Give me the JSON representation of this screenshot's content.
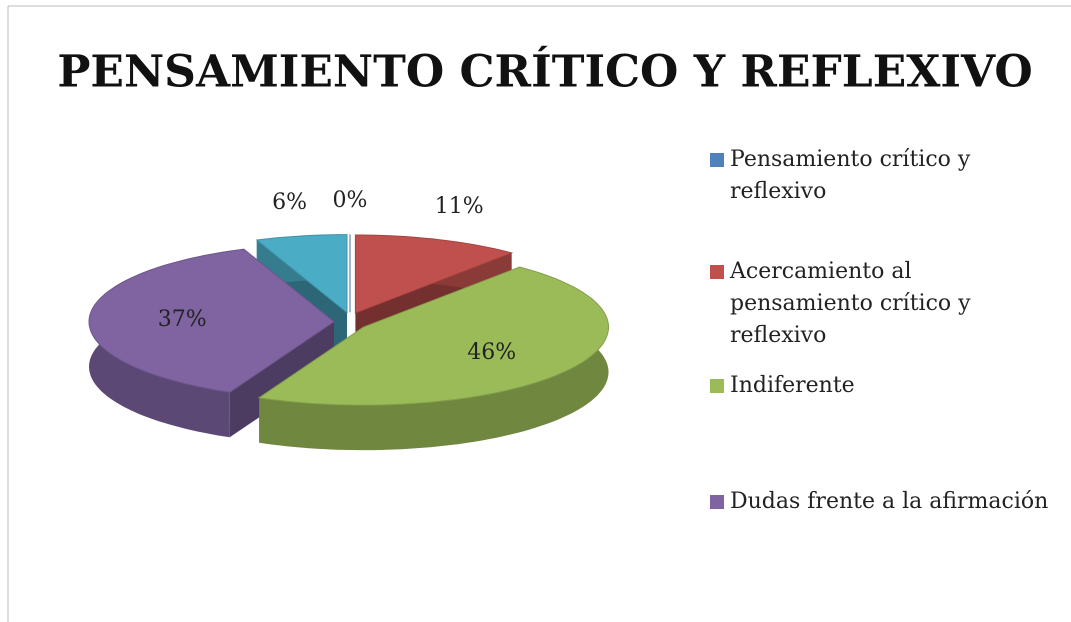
{
  "chart_data": {
    "type": "pie3d",
    "title": "PENSAMIENTO CRÍTICO Y REFLEXIVO",
    "categories": [
      "Pensamiento crítico y reflexivo",
      "Acercamiento al pensamiento crítico y reflexivo",
      "Indiferente",
      "Dudas frente a la afirmación",
      null
    ],
    "values": [
      0,
      11,
      46,
      37,
      6
    ],
    "value_labels": [
      "0%",
      "11%",
      "46%",
      "37%",
      "6%"
    ],
    "colors": [
      "#4f81bd",
      "#c0504d",
      "#9bbb59",
      "#8064a2",
      "#4bacc6"
    ],
    "legend": "right"
  }
}
